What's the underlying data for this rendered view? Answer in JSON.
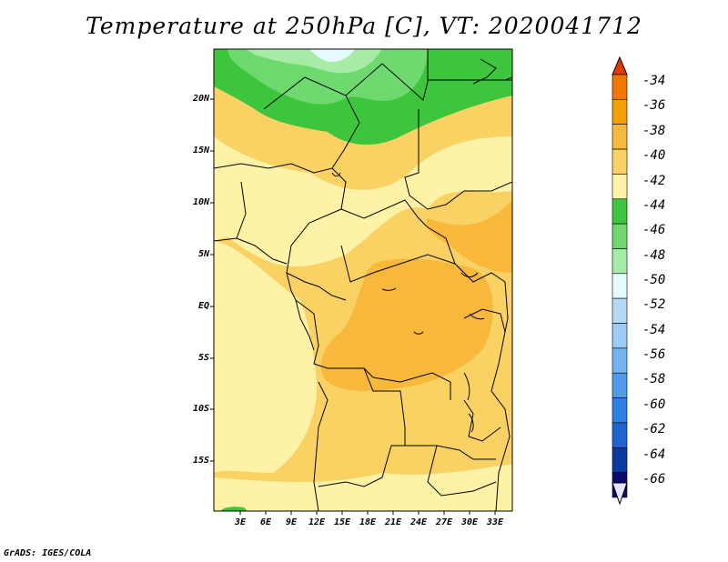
{
  "title": "Temperature at 250hPa [C], VT: 2020041712",
  "footer": "GrADS: IGES/COLA",
  "lat_labels": [
    "20N",
    "15N",
    "10N",
    "5N",
    "EQ",
    "5S",
    "10S",
    "15S"
  ],
  "lon_labels": [
    "3E",
    "6E",
    "9E",
    "12E",
    "15E",
    "18E",
    "21E",
    "24E",
    "27E",
    "30E",
    "33E"
  ],
  "colorbar": {
    "labels": [
      "-34",
      "-36",
      "-38",
      "-40",
      "-42",
      "-44",
      "-46",
      "-48",
      "-50",
      "-52",
      "-54",
      "-56",
      "-58",
      "-60",
      "-62",
      "-64",
      "-66"
    ],
    "colors": [
      "#f07800",
      "#f5a000",
      "#f8b83c",
      "#fad264",
      "#fdf2a6",
      "#3dc53d",
      "#6ed96e",
      "#a6eba6",
      "#e4fbff",
      "#b5d8f5",
      "#9ccbf5",
      "#75b4f0",
      "#4f9aeb",
      "#3080e5",
      "#1e64d0",
      "#0a3aa0",
      "#0b0b6e"
    ],
    "top_arrow_color": "#e13c00",
    "bottom_arrow_color": "#e4e4ff"
  },
  "field_colors": {
    "t40": "#fad264",
    "t42": "#fdf2a6",
    "t38": "#f8b83c",
    "t44": "#3dc53d",
    "t46": "#6ed96e",
    "t48": "#a6eba6",
    "t50": "#e4fbff"
  }
}
